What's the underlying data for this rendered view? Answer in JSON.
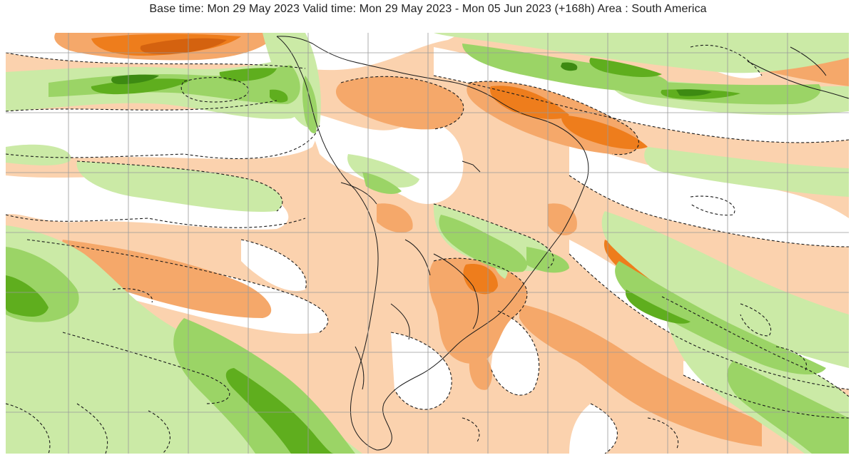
{
  "title": "Base time: Mon 29 May 2023 Valid time: Mon 29 May 2023 - Mon 05 Jun 2023 (+168h) Area : South America",
  "colors": {
    "strong_negative": "#ee7d1c",
    "negative": "#f5a86a",
    "weak_negative": "#fbd2ae",
    "neutral": "#ffffff",
    "weak_positive": "#cbeaa6",
    "positive": "#9bd466",
    "strong_positive": "#5fae1e",
    "very_strong_positive": "#3d8a12",
    "gridline": "#9a9a9a",
    "coastline": "#1a1a1a"
  }
}
